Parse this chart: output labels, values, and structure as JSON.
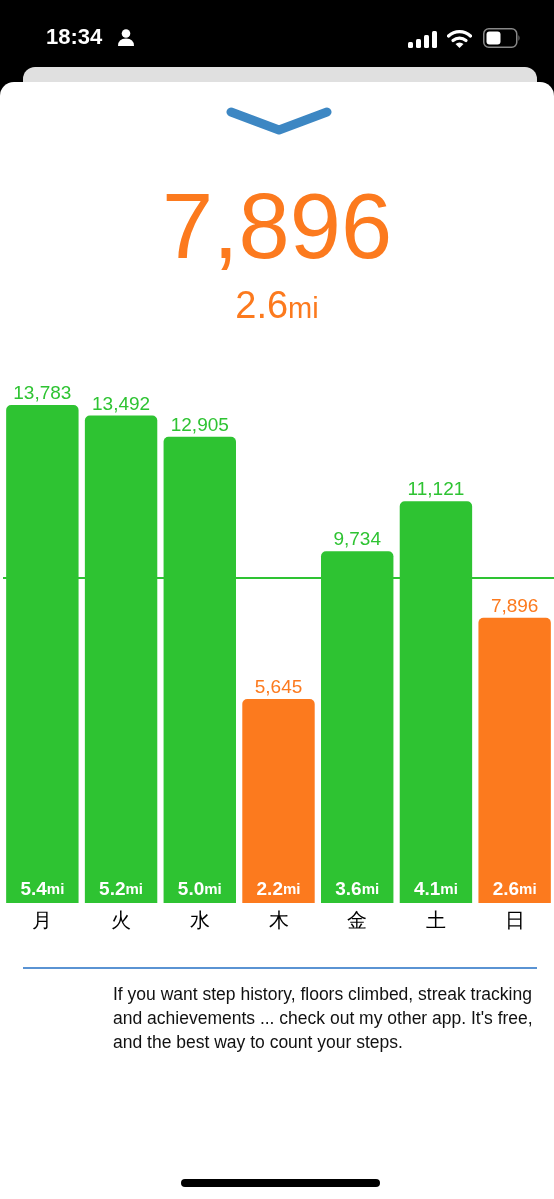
{
  "chart_data": {
    "type": "bar",
    "title": "7,896",
    "subtitle": "2.6mi",
    "categories": [
      "月",
      "火",
      "水",
      "木",
      "金",
      "土",
      "日"
    ],
    "values": [
      13783,
      13492,
      12905,
      5645,
      9734,
      11121,
      7896
    ],
    "colors": [
      "#2ec332",
      "#2ec332",
      "#2ec332",
      "#fc7a1e",
      "#2ec332",
      "#2ec332",
      "#fc7a1e"
    ],
    "value_labels": [
      "13,783",
      "13,492",
      "12,905",
      "5,645",
      "9,734",
      "11,121",
      "7,896"
    ],
    "ref_lines": [
      {
        "axis": "y",
        "value": 9000,
        "color": "#2ec332"
      }
    ],
    "grid": false,
    "tick_labels": "x",
    "annotations": [
      "18:34",
      {
        "text": "5.4mi",
        "x": "月",
        "y": 0
      },
      {
        "text": "5.2mi",
        "x": "火",
        "y": 0
      },
      {
        "text": "5.0mi",
        "x": "水",
        "y": 0
      },
      {
        "text": "2.2mi",
        "x": "木",
        "y": 0
      },
      {
        "text": "3.6mi",
        "x": "金",
        "y": 0
      },
      {
        "text": "4.1mi",
        "x": "土",
        "y": 0
      },
      {
        "text": "2.6mi",
        "x": "日",
        "y": 0
      },
      "If you want step history, floors climbed, streak tracking and achievements ... check out my other app. It's free, and the best way to count your steps."
    ]
  }
}
